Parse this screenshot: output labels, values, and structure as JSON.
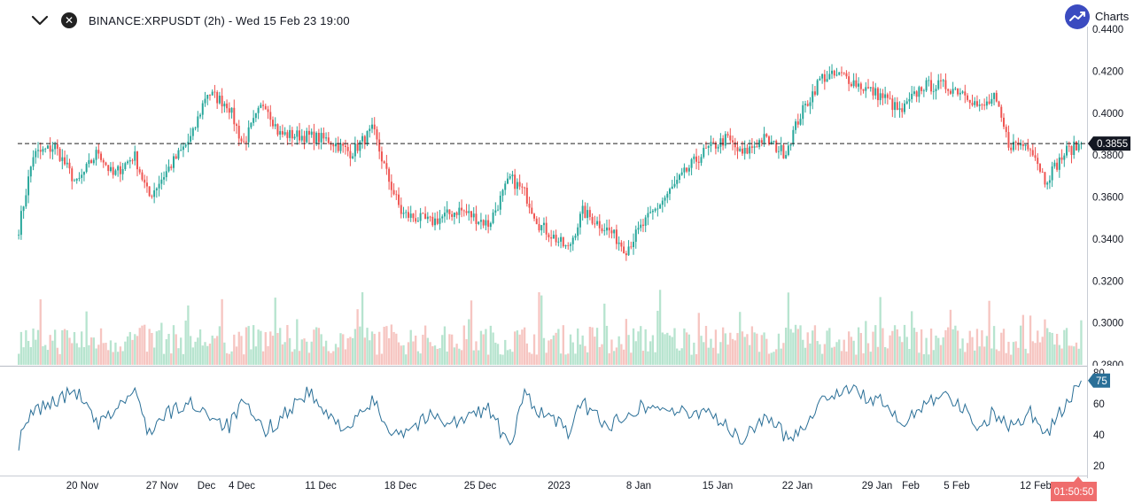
{
  "header": {
    "title": "BINANCE:XRPUSDT (2h) - Wed 15 Feb 23 19:00",
    "brand": "Charts",
    "icons": {
      "collapse": "chevron-down-icon",
      "close": "close-icon",
      "brand": "trend-logo-icon"
    }
  },
  "colors": {
    "up": "#26a69a",
    "down": "#ef5350",
    "up_volume": "#b7e4cf",
    "down_volume": "#f6c5c1",
    "rsi_line": "#2a6f97",
    "price_tag_bg": "#131722",
    "rsi_tag_bg": "#2a6f97",
    "countdown_bg": "#ef6d6d",
    "brand": "#3b4bc0"
  },
  "chart_data": [
    {
      "type": "candlestick",
      "symbol": "BINANCE:XRPUSDT",
      "interval": "2h",
      "ylim": [
        0.28,
        0.44
      ],
      "y_ticks": [
        "0.4400",
        "0.4200",
        "0.4000",
        "0.3800",
        "0.3600",
        "0.3400",
        "0.3200",
        "0.3000",
        "0.2800"
      ],
      "x_ticks": [
        "20 Nov",
        "27 Nov",
        "Dec",
        "4 Dec",
        "11 Dec",
        "18 Dec",
        "25 Dec",
        "2023",
        "8 Jan",
        "15 Jan",
        "22 Jan",
        "29 Jan",
        "Feb",
        "5 Feb",
        "12 Feb"
      ],
      "current_price": 0.3855,
      "current_price_label": "0.3855",
      "countdown_label": "01:50:50",
      "price_path": [
        [
          0,
          0.345
        ],
        [
          2,
          0.38
        ],
        [
          5,
          0.384
        ],
        [
          8,
          0.366
        ],
        [
          11,
          0.382
        ],
        [
          13,
          0.37
        ],
        [
          16,
          0.38
        ],
        [
          18,
          0.36
        ],
        [
          21,
          0.375
        ],
        [
          24,
          0.389
        ],
        [
          26,
          0.41
        ],
        [
          29,
          0.404
        ],
        [
          31,
          0.385
        ],
        [
          34,
          0.406
        ],
        [
          36,
          0.39
        ],
        [
          40,
          0.389
        ],
        [
          43,
          0.387
        ],
        [
          46,
          0.381
        ],
        [
          49,
          0.392
        ],
        [
          51,
          0.37
        ],
        [
          53,
          0.352
        ],
        [
          57,
          0.348
        ],
        [
          61,
          0.354
        ],
        [
          65,
          0.347
        ],
        [
          68,
          0.369
        ],
        [
          70,
          0.362
        ],
        [
          72,
          0.347
        ],
        [
          74,
          0.341
        ],
        [
          76,
          0.335
        ],
        [
          78,
          0.353
        ],
        [
          82,
          0.343
        ],
        [
          84,
          0.335
        ],
        [
          86,
          0.345
        ],
        [
          89,
          0.358
        ],
        [
          93,
          0.375
        ],
        [
          95,
          0.382
        ],
        [
          98,
          0.388
        ],
        [
          100,
          0.38
        ],
        [
          103,
          0.388
        ],
        [
          106,
          0.381
        ],
        [
          108,
          0.398
        ],
        [
          111,
          0.417
        ],
        [
          114,
          0.418
        ],
        [
          117,
          0.412
        ],
        [
          120,
          0.407
        ],
        [
          122,
          0.4
        ],
        [
          125,
          0.413
        ],
        [
          128,
          0.413
        ],
        [
          131,
          0.41
        ],
        [
          133,
          0.402
        ],
        [
          135,
          0.407
        ],
        [
          137,
          0.385
        ],
        [
          140,
          0.385
        ],
        [
          142,
          0.368
        ],
        [
          145,
          0.382
        ],
        [
          147,
          0.385
        ]
      ],
      "volume_ratio_max": 0.29
    },
    {
      "type": "line",
      "name": "RSI",
      "ylim": [
        15,
        80
      ],
      "y_ticks": [
        80,
        60,
        40,
        20
      ],
      "current_value": 75,
      "path": [
        [
          0,
          35
        ],
        [
          2,
          55
        ],
        [
          5,
          62
        ],
        [
          8,
          68
        ],
        [
          11,
          45
        ],
        [
          13,
          55
        ],
        [
          16,
          68
        ],
        [
          18,
          42
        ],
        [
          21,
          55
        ],
        [
          24,
          60
        ],
        [
          26,
          55
        ],
        [
          29,
          45
        ],
        [
          31,
          60
        ],
        [
          34,
          42
        ],
        [
          36,
          50
        ],
        [
          40,
          68
        ],
        [
          43,
          50
        ],
        [
          46,
          45
        ],
        [
          49,
          62
        ],
        [
          51,
          45
        ],
        [
          53,
          42
        ],
        [
          57,
          52
        ],
        [
          61,
          48
        ],
        [
          65,
          58
        ],
        [
          68,
          30
        ],
        [
          70,
          68
        ],
        [
          72,
          55
        ],
        [
          74,
          50
        ],
        [
          76,
          42
        ],
        [
          78,
          60
        ],
        [
          82,
          45
        ],
        [
          84,
          55
        ],
        [
          86,
          58
        ],
        [
          89,
          58
        ],
        [
          93,
          52
        ],
        [
          95,
          58
        ],
        [
          98,
          45
        ],
        [
          100,
          35
        ],
        [
          103,
          52
        ],
        [
          106,
          40
        ],
        [
          108,
          42
        ],
        [
          111,
          62
        ],
        [
          114,
          70
        ],
        [
          117,
          65
        ],
        [
          120,
          60
        ],
        [
          122,
          45
        ],
        [
          125,
          60
        ],
        [
          128,
          68
        ],
        [
          131,
          55
        ],
        [
          133,
          45
        ],
        [
          135,
          55
        ],
        [
          137,
          45
        ],
        [
          140,
          55
        ],
        [
          142,
          40
        ],
        [
          145,
          60
        ],
        [
          147,
          75
        ]
      ]
    }
  ]
}
